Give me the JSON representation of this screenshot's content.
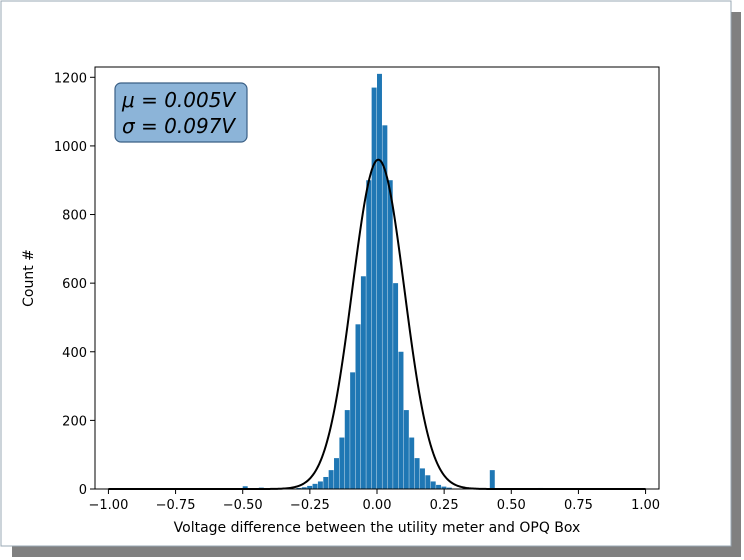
{
  "colors": {
    "bar": "#1f77b4",
    "curve": "#000000",
    "annotation_fill": "#8cb4d8",
    "annotation_stroke": "#3a5f85",
    "shadow": "#808080"
  },
  "chart_data": {
    "type": "bar",
    "title": "",
    "xlabel": "Voltage difference between the utility meter and OPQ Box",
    "ylabel": "Count #",
    "xlim": [
      -1.05,
      1.05
    ],
    "ylim": [
      0,
      1230
    ],
    "grid": false,
    "xticks": [
      -1.0,
      -0.75,
      -0.5,
      -0.25,
      0.0,
      0.25,
      0.5,
      0.75,
      1.0
    ],
    "xtick_labels": [
      "−1.00",
      "−0.75",
      "−0.50",
      "−0.25",
      "0.00",
      "0.25",
      "0.50",
      "0.75",
      "1.00"
    ],
    "yticks": [
      0,
      200,
      400,
      600,
      800,
      1000,
      1200
    ],
    "ytick_labels": [
      "0",
      "200",
      "400",
      "600",
      "800",
      "1000",
      "1200"
    ],
    "histogram": {
      "bin_width": 0.02,
      "bin_left": [
        -0.5,
        -0.44,
        -0.3,
        -0.28,
        -0.26,
        -0.24,
        -0.22,
        -0.2,
        -0.18,
        -0.16,
        -0.14,
        -0.12,
        -0.1,
        -0.08,
        -0.06,
        -0.04,
        -0.02,
        0.0,
        0.02,
        0.04,
        0.06,
        0.08,
        0.1,
        0.12,
        0.14,
        0.16,
        0.18,
        0.2,
        0.22,
        0.24,
        0.26,
        0.42,
        0.6
      ],
      "counts": [
        8,
        4,
        3,
        5,
        9,
        15,
        22,
        35,
        55,
        90,
        150,
        230,
        340,
        480,
        620,
        900,
        1170,
        1210,
        1060,
        900,
        600,
        400,
        230,
        150,
        90,
        60,
        40,
        22,
        12,
        7,
        4,
        55,
        3
      ]
    },
    "fit_curve": {
      "label": "",
      "mu": 0.005,
      "sigma": 0.097,
      "peak": 960
    },
    "annotation": {
      "lines": [
        "μ = 0.005V",
        "σ = 0.097V"
      ],
      "placement": "top-left"
    }
  }
}
